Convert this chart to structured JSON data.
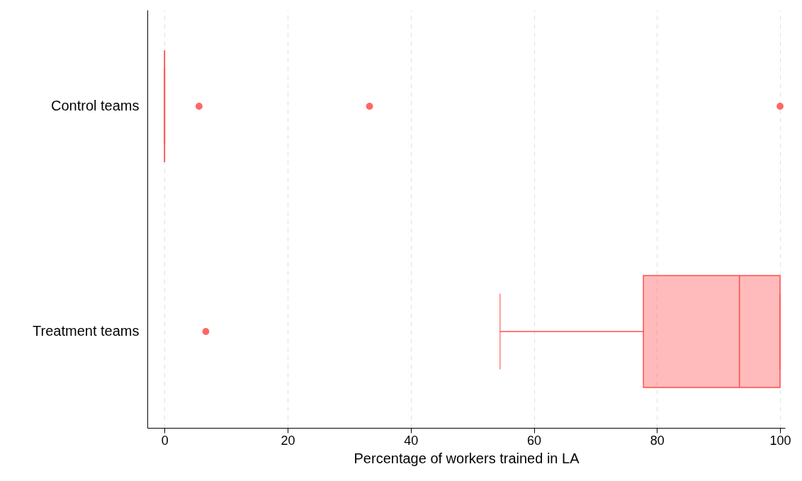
{
  "chart_data": {
    "type": "box",
    "orientation": "horizontal",
    "categories": [
      "Control teams",
      "Treatment teams"
    ],
    "xlabel": "Percentage of workers trained in LA",
    "xlim": [
      -2.8,
      100.8
    ],
    "xticks": [
      0,
      20,
      40,
      60,
      80,
      100
    ],
    "grid": "x",
    "marker": "circle",
    "series": [
      {
        "color": "#ff4d4d",
        "boxes": [
          {
            "low": 0,
            "q1": 0,
            "median": 0,
            "q3": 0,
            "high": 0,
            "outliers": [
              5.6,
              33.3,
              100
            ]
          },
          {
            "low": 54.5,
            "q1": 77.8,
            "median": 93.4,
            "q3": 100,
            "high": 100,
            "outliers": [
              6.7
            ]
          }
        ]
      }
    ]
  }
}
